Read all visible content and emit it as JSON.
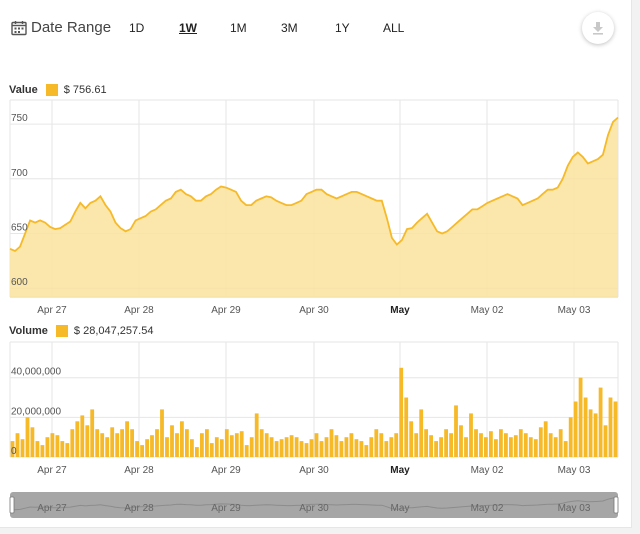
{
  "toolbar": {
    "date_range_label": "Date Range",
    "ranges": [
      "1D",
      "1W",
      "1M",
      "3M",
      "1Y",
      "ALL"
    ],
    "active_range": "1W"
  },
  "colors": {
    "series": "#f6b928",
    "area_fill": "#fae39d",
    "grid": "#e6e6e6",
    "navigator": "#a6a6a6"
  },
  "value_legend": {
    "label": "Value",
    "value": "$ 756.61"
  },
  "volume_legend": {
    "label": "Volume",
    "value": "$ 28,047,257.54"
  },
  "chart_data": [
    {
      "type": "area",
      "name": "value",
      "x_labels": [
        "Apr 27",
        "Apr 28",
        "Apr 29",
        "Apr 30",
        "May",
        "May 02",
        "May 03"
      ],
      "bold_x_labels": [
        "May"
      ],
      "yticks": [
        600,
        650,
        700,
        750
      ],
      "ylim": [
        592,
        772
      ],
      "grid": true,
      "x_start": "2016-04-26T10:00",
      "x_step_hours": 1,
      "values": [
        636,
        634,
        638,
        650,
        662,
        660,
        662,
        660,
        656,
        654,
        655,
        658,
        661,
        670,
        678,
        673,
        678,
        680,
        684,
        676,
        670,
        660,
        655,
        652,
        654,
        662,
        664,
        666,
        670,
        672,
        676,
        680,
        682,
        688,
        690,
        686,
        684,
        680,
        680,
        684,
        686,
        690,
        693,
        692,
        690,
        688,
        680,
        676,
        676,
        680,
        682,
        684,
        683,
        680,
        678,
        676,
        676,
        678,
        680,
        686,
        688,
        690,
        690,
        686,
        684,
        682,
        684,
        686,
        688,
        688,
        686,
        684,
        682,
        680,
        680,
        664,
        646,
        640,
        644,
        654,
        655,
        660,
        664,
        668,
        660,
        652,
        650,
        652,
        656,
        660,
        664,
        668,
        672,
        672,
        675,
        678,
        680,
        682,
        684,
        686,
        684,
        682,
        676,
        678,
        680,
        682,
        686,
        690,
        690,
        692,
        700,
        712,
        720,
        724,
        720,
        714,
        716,
        718,
        722,
        740,
        752,
        756
      ]
    },
    {
      "type": "bar",
      "name": "volume",
      "x_labels": [
        "Apr 27",
        "Apr 28",
        "Apr 29",
        "Apr 30",
        "May",
        "May 02",
        "May 03"
      ],
      "bold_x_labels": [
        "May"
      ],
      "yticks": [
        0,
        20000000,
        40000000
      ],
      "ytick_labels": [
        "0",
        "20,000,000",
        "40,000,000"
      ],
      "ylim": [
        0,
        58000000
      ],
      "grid": true,
      "values_millions": [
        8,
        12,
        9,
        20,
        15,
        8,
        6,
        10,
        12,
        11,
        8,
        7,
        14,
        18,
        21,
        16,
        24,
        14,
        12,
        10,
        15,
        12,
        14,
        18,
        14,
        8,
        6,
        9,
        11,
        14,
        24,
        10,
        16,
        12,
        18,
        14,
        9,
        5,
        12,
        14,
        7,
        10,
        9,
        14,
        11,
        12,
        13,
        6,
        10,
        22,
        14,
        12,
        10,
        8,
        9,
        10,
        11,
        10,
        8,
        7,
        9,
        12,
        8,
        10,
        14,
        11,
        8,
        10,
        12,
        9,
        8,
        6,
        10,
        14,
        12,
        8,
        10,
        12,
        45,
        30,
        18,
        12,
        24,
        14,
        11,
        8,
        10,
        14,
        12,
        26,
        16,
        10,
        22,
        14,
        12,
        10,
        13,
        9,
        14,
        12,
        10,
        11,
        14,
        12,
        10,
        9,
        15,
        18,
        12,
        10,
        14,
        8,
        20,
        28,
        40,
        30,
        24,
        22,
        35,
        16,
        30,
        28
      ]
    }
  ],
  "navigator": {
    "x_labels": [
      "Apr 27",
      "Apr 28",
      "Apr 29",
      "Apr 30",
      "May",
      "May 02",
      "May 03"
    ]
  }
}
